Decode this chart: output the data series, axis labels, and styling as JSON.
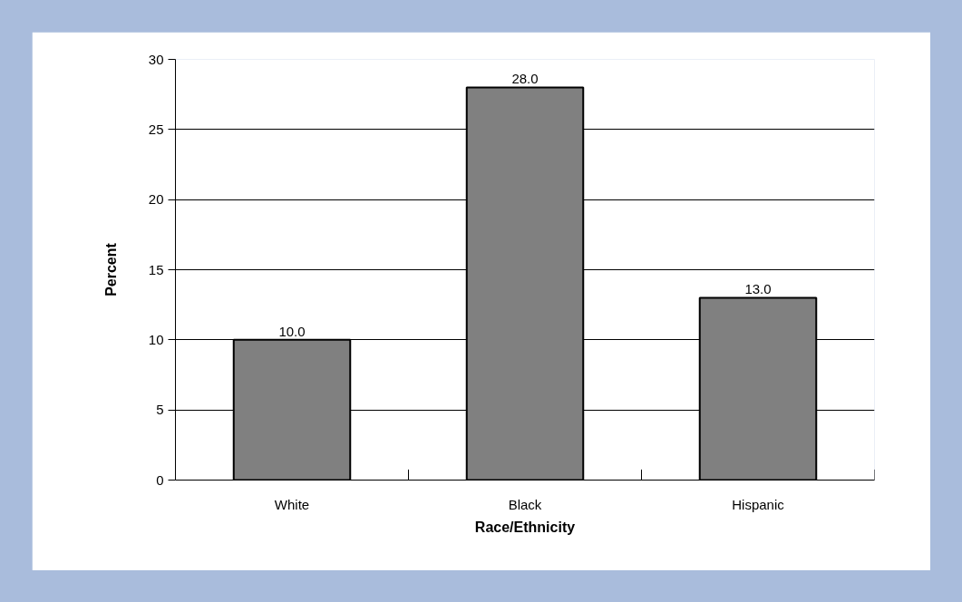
{
  "chart_data": {
    "type": "bar",
    "xlabel": "Race/Ethnicity",
    "ylabel": "Percent",
    "categories": [
      "White",
      "Black",
      "Hispanic"
    ],
    "values": [
      10,
      28,
      13
    ],
    "value_labels": [
      "10.0",
      "28.0",
      "13.0"
    ],
    "color": "#808080",
    "ylim": [
      0,
      30
    ],
    "yticks": [
      0,
      5,
      10,
      15,
      20,
      25,
      30
    ],
    "grid": "y"
  }
}
